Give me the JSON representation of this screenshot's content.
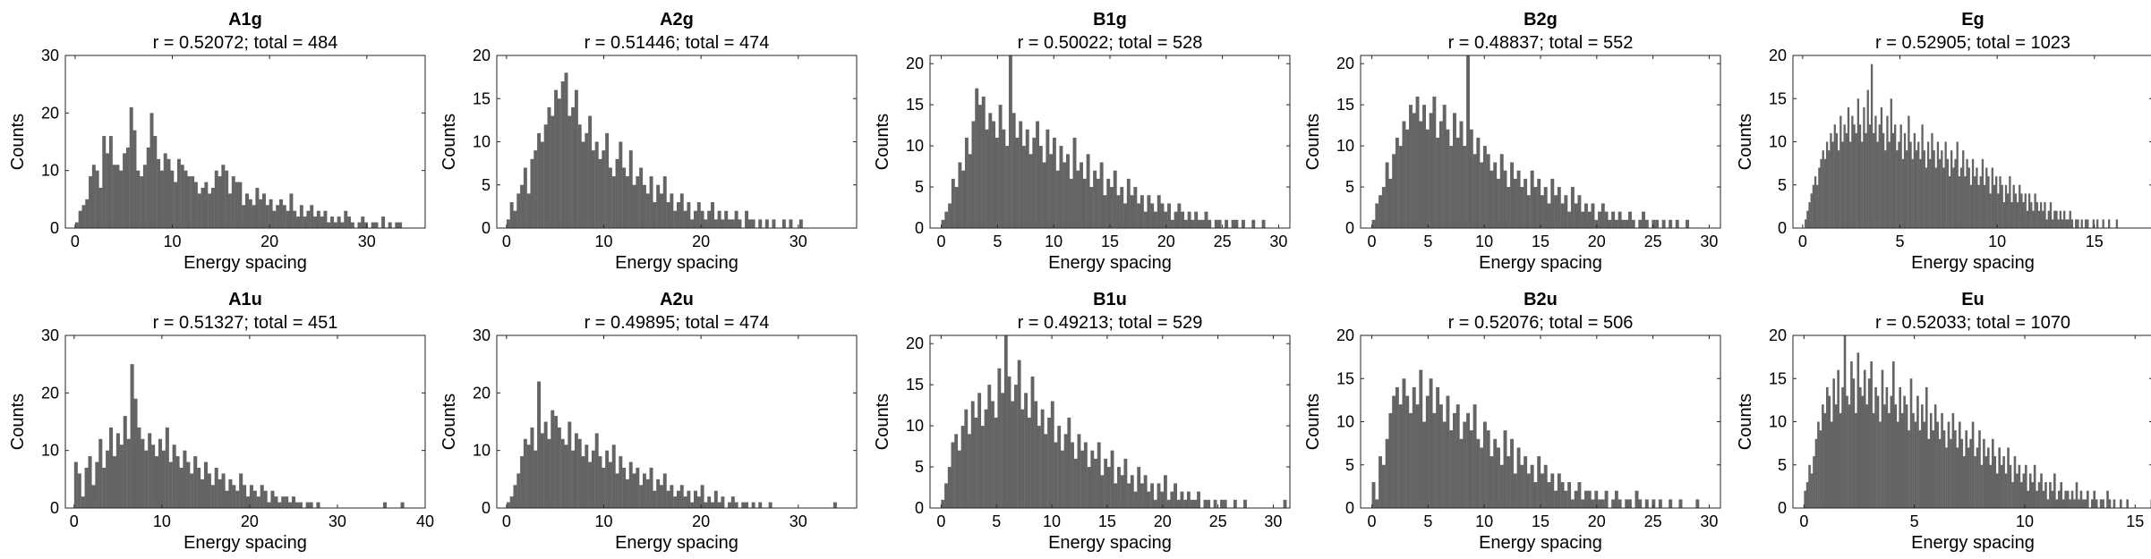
{
  "figure": {
    "background": "#ffffff",
    "bar_color": "#646464",
    "axis_color": "#262626"
  },
  "chart_data": [
    {
      "type": "bar",
      "title": "A1g",
      "subtitle": "r = 0.52072; total = 484",
      "xlabel": "Energy spacing",
      "ylabel": "Counts",
      "xlim": [
        -1,
        36
      ],
      "ylim": [
        0,
        30
      ],
      "xticks": [
        0,
        10,
        20,
        30
      ],
      "yticks": [
        0,
        10,
        20,
        30
      ],
      "bin_start": 0,
      "bin_width": 0.35,
      "values": [
        1,
        3,
        4,
        5,
        9,
        11,
        10,
        7,
        16,
        13,
        16,
        11,
        11,
        10,
        13,
        14,
        21,
        17,
        10,
        9,
        11,
        14,
        20,
        16,
        12,
        10,
        13,
        12,
        10,
        8,
        12,
        11,
        10,
        9,
        9,
        8,
        6,
        7,
        8,
        6,
        7,
        10,
        9,
        11,
        10,
        6,
        9,
        8,
        8,
        4,
        6,
        5,
        4,
        7,
        5,
        6,
        4,
        5,
        3,
        4,
        5,
        4,
        3,
        6,
        3,
        2,
        4,
        2,
        3,
        4,
        2,
        3,
        2,
        3,
        1,
        2,
        1,
        2,
        1,
        3,
        2,
        1,
        0,
        1,
        2,
        1,
        0,
        1,
        1,
        0,
        2,
        0,
        1,
        0,
        1,
        1
      ]
    },
    {
      "type": "bar",
      "title": "A2g",
      "subtitle": "r = 0.51446; total = 474",
      "xlabel": "Energy spacing",
      "ylabel": "Counts",
      "xlim": [
        -1,
        36
      ],
      "ylim": [
        0,
        20
      ],
      "xticks": [
        0,
        10,
        20,
        30
      ],
      "yticks": [
        0,
        5,
        10,
        15,
        20
      ],
      "bin_start": 0,
      "bin_width": 0.35,
      "values": [
        1,
        3,
        2,
        4,
        5,
        7,
        4,
        8,
        9,
        11,
        10,
        12,
        14,
        13,
        16,
        15,
        17,
        18,
        13,
        14,
        16,
        12,
        10,
        11,
        13,
        9,
        10,
        8,
        9,
        11,
        7,
        6,
        8,
        10,
        7,
        6,
        9,
        5,
        6,
        7,
        5,
        4,
        6,
        3,
        5,
        4,
        6,
        3,
        4,
        2,
        3,
        4,
        2,
        3,
        1,
        2,
        3,
        2,
        1,
        2,
        3,
        1,
        2,
        1,
        2,
        1,
        1,
        2,
        1,
        0,
        2,
        1,
        1,
        0,
        1,
        0,
        1,
        0,
        1,
        0,
        0,
        1,
        0,
        1,
        0,
        0,
        1
      ]
    },
    {
      "type": "bar",
      "title": "B1g",
      "subtitle": "r = 0.50022; total = 528",
      "xlabel": "Energy spacing",
      "ylabel": "Counts",
      "xlim": [
        -1,
        31
      ],
      "ylim": [
        0,
        21
      ],
      "xticks": [
        0,
        5,
        10,
        15,
        20,
        25,
        30
      ],
      "yticks": [
        0,
        5,
        10,
        15,
        20
      ],
      "bin_start": 0,
      "bin_width": 0.3,
      "values": [
        1,
        2,
        3,
        6,
        5,
        8,
        7,
        11,
        9,
        13,
        17,
        15,
        16,
        12,
        14,
        13,
        11,
        15,
        12,
        10,
        21,
        14,
        11,
        13,
        10,
        12,
        9,
        11,
        13,
        10,
        8,
        12,
        9,
        11,
        7,
        10,
        8,
        9,
        6,
        11,
        7,
        8,
        6,
        9,
        5,
        7,
        6,
        8,
        4,
        6,
        5,
        7,
        4,
        5,
        3,
        6,
        4,
        5,
        3,
        4,
        2,
        4,
        3,
        2,
        4,
        3,
        2,
        3,
        1,
        2,
        3,
        2,
        1,
        2,
        1,
        2,
        1,
        1,
        2,
        1,
        0,
        1,
        1,
        0,
        1,
        0,
        1,
        1,
        0,
        1,
        0,
        0,
        1,
        0,
        0,
        1
      ]
    },
    {
      "type": "bar",
      "title": "B2g",
      "subtitle": "r = 0.48837; total = 552",
      "xlabel": "Energy spacing",
      "ylabel": "Counts",
      "xlim": [
        -1,
        31
      ],
      "ylim": [
        0,
        21
      ],
      "xticks": [
        0,
        5,
        10,
        15,
        20,
        25,
        30
      ],
      "yticks": [
        0,
        5,
        10,
        15,
        20
      ],
      "bin_start": 0,
      "bin_width": 0.3,
      "values": [
        1,
        3,
        4,
        5,
        8,
        6,
        9,
        11,
        10,
        13,
        12,
        15,
        14,
        16,
        13,
        15,
        12,
        14,
        16,
        11,
        13,
        15,
        12,
        10,
        14,
        11,
        13,
        10,
        21,
        12,
        9,
        11,
        8,
        10,
        9,
        7,
        8,
        6,
        9,
        7,
        5,
        8,
        6,
        7,
        5,
        6,
        4,
        7,
        5,
        6,
        4,
        5,
        3,
        6,
        4,
        5,
        3,
        4,
        2,
        5,
        3,
        4,
        2,
        3,
        2,
        3,
        1,
        2,
        3,
        2,
        1,
        2,
        1,
        2,
        1,
        1,
        2,
        1,
        0,
        1,
        2,
        1,
        0,
        1,
        1,
        0,
        1,
        0,
        1,
        0,
        1,
        0,
        0,
        1
      ]
    },
    {
      "type": "bar",
      "title": "Eg",
      "subtitle": "r = 0.52905; total = 1023",
      "xlabel": "Energy spacing",
      "ylabel": "Counts",
      "xlim": [
        -0.5,
        18
      ],
      "ylim": [
        0,
        20
      ],
      "xticks": [
        0,
        5,
        10,
        15
      ],
      "yticks": [
        0,
        5,
        10,
        15,
        20
      ],
      "bin_start": 0,
      "bin_width": 0.1,
      "values": [
        0,
        1,
        2,
        3,
        4,
        5,
        6,
        5,
        7,
        8,
        9,
        8,
        10,
        9,
        11,
        10,
        12,
        11,
        9,
        13,
        10,
        12,
        11,
        14,
        10,
        13,
        12,
        11,
        15,
        12,
        10,
        14,
        11,
        16,
        12,
        19,
        11,
        13,
        10,
        12,
        14,
        11,
        9,
        13,
        10,
        15,
        11,
        12,
        9,
        10,
        12,
        8,
        11,
        9,
        13,
        10,
        8,
        11,
        9,
        10,
        8,
        12,
        9,
        7,
        10,
        8,
        11,
        9,
        7,
        10,
        8,
        9,
        7,
        10,
        8,
        6,
        9,
        7,
        8,
        10,
        6,
        7,
        9,
        6,
        8,
        7,
        5,
        8,
        6,
        7,
        5,
        6,
        8,
        5,
        7,
        6,
        4,
        7,
        5,
        6,
        4,
        6,
        5,
        3,
        5,
        4,
        6,
        3,
        5,
        4,
        3,
        5,
        4,
        3,
        4,
        2,
        4,
        3,
        2,
        4,
        3,
        2,
        3,
        2,
        3,
        1,
        2,
        3,
        1,
        2,
        2,
        1,
        2,
        1,
        2,
        1,
        1,
        2,
        1,
        0,
        1,
        1,
        0,
        1,
        0,
        1,
        1,
        0,
        0,
        1,
        0,
        1,
        0,
        0,
        1,
        0,
        0,
        1,
        0,
        0,
        0,
        1
      ]
    },
    {
      "type": "bar",
      "title": "A1u",
      "subtitle": "r = 0.51327; total = 451",
      "xlabel": "Energy spacing",
      "ylabel": "Counts",
      "xlim": [
        -1,
        40
      ],
      "ylim": [
        0,
        30
      ],
      "xticks": [
        0,
        10,
        20,
        30,
        40
      ],
      "yticks": [
        0,
        10,
        20,
        30
      ],
      "bin_start": 0,
      "bin_width": 0.4,
      "values": [
        8,
        6,
        2,
        7,
        9,
        4,
        8,
        12,
        7,
        10,
        14,
        9,
        13,
        11,
        16,
        12,
        25,
        19,
        14,
        12,
        10,
        13,
        11,
        9,
        12,
        10,
        14,
        8,
        11,
        9,
        7,
        10,
        8,
        6,
        9,
        7,
        5,
        8,
        6,
        4,
        7,
        5,
        6,
        3,
        5,
        4,
        3,
        6,
        4,
        2,
        4,
        3,
        2,
        4,
        3,
        1,
        3,
        2,
        1,
        2,
        2,
        1,
        2,
        1,
        1,
        0,
        1,
        1,
        0,
        1,
        0,
        0,
        0,
        0,
        0,
        0,
        0,
        0,
        0,
        0,
        0,
        0,
        0,
        0,
        0,
        0,
        0,
        0,
        1,
        0,
        0,
        0,
        0,
        1
      ]
    },
    {
      "type": "bar",
      "title": "A2u",
      "subtitle": "r = 0.49895; total = 474",
      "xlabel": "Energy spacing",
      "ylabel": "Counts",
      "xlim": [
        -1,
        36
      ],
      "ylim": [
        0,
        30
      ],
      "xticks": [
        0,
        10,
        20,
        30
      ],
      "yticks": [
        0,
        10,
        20,
        30
      ],
      "bin_start": 0,
      "bin_width": 0.35,
      "values": [
        1,
        2,
        4,
        6,
        9,
        12,
        11,
        14,
        10,
        22,
        13,
        15,
        12,
        17,
        16,
        14,
        12,
        11,
        15,
        10,
        13,
        12,
        9,
        11,
        8,
        10,
        13,
        9,
        7,
        10,
        8,
        11,
        6,
        9,
        7,
        5,
        8,
        6,
        7,
        4,
        6,
        5,
        7,
        3,
        5,
        4,
        6,
        3,
        4,
        2,
        3,
        4,
        2,
        3,
        1,
        3,
        2,
        4,
        1,
        2,
        1,
        3,
        1,
        2,
        0,
        1,
        2,
        1,
        0,
        1,
        1,
        0,
        1,
        0,
        1,
        0,
        0,
        1,
        0,
        0,
        0,
        0,
        0,
        0,
        0,
        0,
        0,
        0,
        0,
        0,
        0,
        0,
        0,
        0,
        0,
        0,
        1
      ]
    },
    {
      "type": "bar",
      "title": "B1u",
      "subtitle": "r = 0.49213; total = 529",
      "xlabel": "Energy spacing",
      "ylabel": "Counts",
      "xlim": [
        -1,
        31.5
      ],
      "ylim": [
        0,
        21
      ],
      "xticks": [
        0,
        5,
        10,
        15,
        20,
        25,
        30
      ],
      "yticks": [
        0,
        5,
        10,
        15,
        20
      ],
      "bin_start": 0,
      "bin_width": 0.3,
      "values": [
        1,
        3,
        5,
        8,
        9,
        7,
        10,
        12,
        9,
        13,
        11,
        14,
        10,
        12,
        15,
        13,
        11,
        17,
        14,
        21,
        16,
        13,
        15,
        18,
        12,
        14,
        11,
        16,
        13,
        10,
        12,
        9,
        11,
        13,
        8,
        10,
        7,
        9,
        11,
        8,
        6,
        9,
        7,
        8,
        5,
        7,
        6,
        8,
        4,
        6,
        5,
        7,
        3,
        5,
        4,
        6,
        3,
        4,
        2,
        5,
        3,
        4,
        2,
        3,
        1,
        3,
        2,
        4,
        1,
        2,
        3,
        1,
        2,
        1,
        2,
        1,
        1,
        2,
        0,
        1,
        1,
        0,
        1,
        0,
        1,
        1,
        0,
        0,
        1,
        0,
        0,
        1,
        0,
        0,
        0,
        0,
        0,
        0,
        0,
        0,
        0,
        0,
        0,
        1
      ]
    },
    {
      "type": "bar",
      "title": "B2u",
      "subtitle": "r = 0.52076; total = 506",
      "xlabel": "Energy spacing",
      "ylabel": "Counts",
      "xlim": [
        -1,
        31
      ],
      "ylim": [
        0,
        20
      ],
      "xticks": [
        0,
        5,
        10,
        15,
        20,
        25,
        30
      ],
      "yticks": [
        0,
        5,
        10,
        15,
        20
      ],
      "bin_start": 0,
      "bin_width": 0.3,
      "values": [
        3,
        1,
        6,
        5,
        8,
        11,
        13,
        14,
        12,
        15,
        13,
        11,
        14,
        12,
        16,
        10,
        13,
        15,
        11,
        14,
        12,
        10,
        13,
        9,
        11,
        12,
        8,
        10,
        11,
        9,
        12,
        8,
        7,
        10,
        9,
        6,
        8,
        7,
        5,
        9,
        6,
        8,
        4,
        7,
        5,
        6,
        4,
        5,
        3,
        6,
        4,
        5,
        3,
        4,
        2,
        4,
        3,
        2,
        3,
        1,
        2,
        3,
        1,
        2,
        2,
        1,
        2,
        1,
        1,
        2,
        0,
        1,
        2,
        1,
        0,
        1,
        1,
        0,
        2,
        1,
        0,
        1,
        0,
        1,
        0,
        1,
        0,
        0,
        1,
        0,
        0,
        1,
        0,
        0,
        0,
        0,
        1
      ]
    },
    {
      "type": "bar",
      "title": "Eu",
      "subtitle": "r = 0.52033; total = 1070",
      "xlabel": "Energy spacing",
      "ylabel": "Counts",
      "xlim": [
        -0.5,
        15.8
      ],
      "ylim": [
        0,
        20
      ],
      "xticks": [
        0,
        5,
        10,
        15
      ],
      "yticks": [
        0,
        5,
        10,
        15,
        20
      ],
      "bin_start": 0,
      "bin_width": 0.1,
      "values": [
        2,
        3,
        5,
        4,
        6,
        8,
        10,
        9,
        12,
        11,
        14,
        13,
        10,
        15,
        12,
        16,
        11,
        14,
        20,
        13,
        12,
        17,
        15,
        11,
        18,
        14,
        13,
        16,
        12,
        15,
        17,
        11,
        14,
        13,
        10,
        16,
        12,
        14,
        11,
        13,
        17,
        12,
        10,
        14,
        11,
        13,
        12,
        9,
        15,
        11,
        10,
        13,
        9,
        12,
        10,
        14,
        8,
        11,
        9,
        12,
        10,
        8,
        11,
        9,
        7,
        10,
        8,
        11,
        9,
        7,
        10,
        8,
        6,
        9,
        7,
        8,
        10,
        6,
        7,
        9,
        5,
        8,
        6,
        7,
        5,
        8,
        6,
        4,
        7,
        5,
        6,
        4,
        7,
        5,
        3,
        6,
        4,
        5,
        3,
        4,
        5,
        2,
        4,
        3,
        5,
        2,
        3,
        4,
        2,
        3,
        1,
        3,
        2,
        4,
        1,
        2,
        3,
        1,
        2,
        2,
        1,
        2,
        1,
        3,
        1,
        2,
        1,
        1,
        2,
        0,
        1,
        2,
        1,
        0,
        1,
        1,
        0,
        2,
        1,
        0,
        1,
        0,
        0,
        1,
        0,
        0,
        1,
        0,
        0,
        0,
        0,
        0,
        0,
        0,
        0,
        0,
        0,
        1
      ]
    }
  ]
}
